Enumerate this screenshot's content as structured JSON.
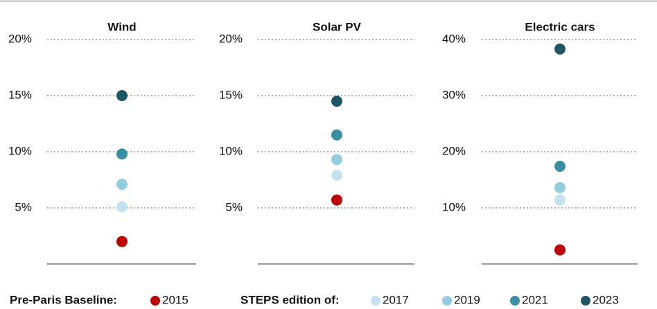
{
  "chart_data": [
    {
      "type": "dot",
      "title": "Wind",
      "ylim": [
        0,
        20
      ],
      "yticks": [
        {
          "value": 5,
          "label": "5%"
        },
        {
          "value": 10,
          "label": "10%"
        },
        {
          "value": 15,
          "label": "15%"
        },
        {
          "value": 20,
          "label": "20%"
        }
      ],
      "grid": true,
      "series": [
        {
          "name": "2015",
          "color": "#c00000",
          "values": [
            2.0
          ]
        },
        {
          "name": "2017",
          "color": "#c5e3ec",
          "values": [
            5.1
          ]
        },
        {
          "name": "2019",
          "color": "#93cddd",
          "values": [
            7.1
          ]
        },
        {
          "name": "2021",
          "color": "#3a8fa3",
          "values": [
            9.8
          ]
        },
        {
          "name": "2023",
          "color": "#1f5664",
          "values": [
            15.0
          ]
        }
      ]
    },
    {
      "type": "dot",
      "title": "Solar PV",
      "ylim": [
        0,
        20
      ],
      "yticks": [
        {
          "value": 5,
          "label": "5%"
        },
        {
          "value": 10,
          "label": "10%"
        },
        {
          "value": 15,
          "label": "15%"
        },
        {
          "value": 20,
          "label": "20%"
        }
      ],
      "grid": true,
      "series": [
        {
          "name": "2015",
          "color": "#c00000",
          "values": [
            5.7
          ]
        },
        {
          "name": "2017",
          "color": "#c5e3ec",
          "values": [
            7.9
          ]
        },
        {
          "name": "2019",
          "color": "#93cddd",
          "values": [
            9.3
          ]
        },
        {
          "name": "2021",
          "color": "#3a8fa3",
          "values": [
            11.5
          ]
        },
        {
          "name": "2023",
          "color": "#1f5664",
          "values": [
            14.5
          ]
        }
      ]
    },
    {
      "type": "dot",
      "title": "Electric cars",
      "ylim": [
        0,
        40
      ],
      "yticks": [
        {
          "value": 10,
          "label": "10%"
        },
        {
          "value": 20,
          "label": "20%"
        },
        {
          "value": 30,
          "label": "30%"
        },
        {
          "value": 40,
          "label": "40%"
        }
      ],
      "grid": true,
      "series": [
        {
          "name": "2015",
          "color": "#c00000",
          "values": [
            2.5
          ]
        },
        {
          "name": "2017",
          "color": "#c5e3ec",
          "values": [
            11.4
          ]
        },
        {
          "name": "2019",
          "color": "#93cddd",
          "values": [
            13.6
          ]
        },
        {
          "name": "2021",
          "color": "#3a8fa3",
          "values": [
            17.4
          ]
        },
        {
          "name": "2023",
          "color": "#1f5664",
          "values": [
            38.3
          ]
        }
      ]
    }
  ],
  "legend": {
    "baseline_label": "Pre-Paris Baseline:",
    "steps_label": "STEPS edition of:"
  }
}
